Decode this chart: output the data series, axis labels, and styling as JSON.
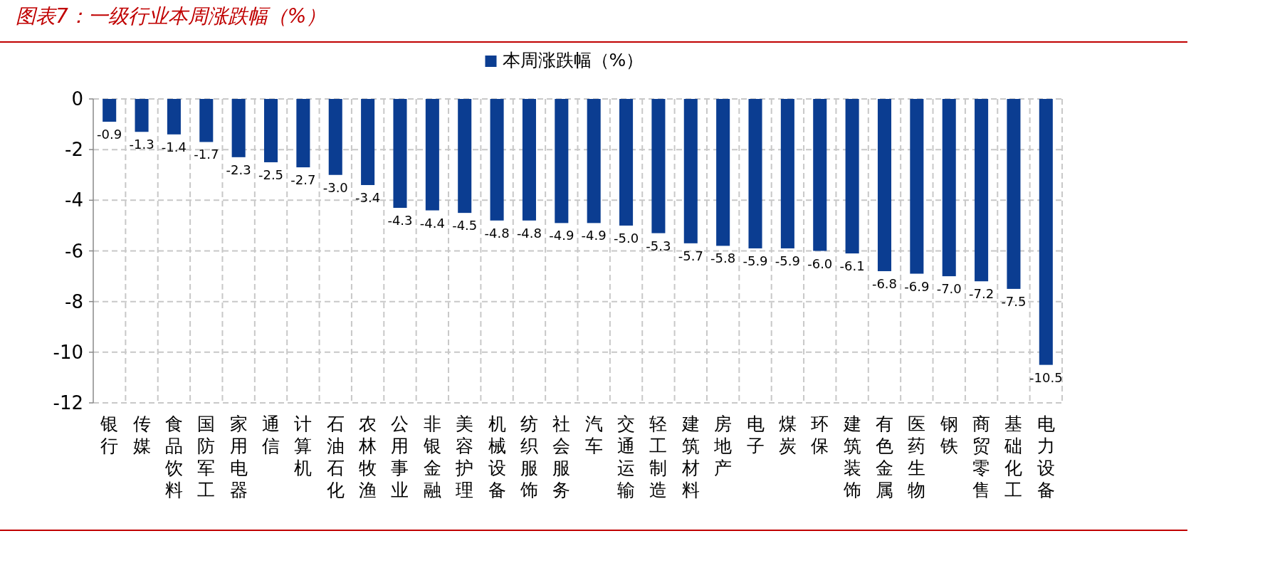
{
  "chart_data": {
    "type": "bar",
    "title": "图表7：一级行业本周涨跌幅（%）",
    "categories": [
      "银行",
      "传媒",
      "食品饮料",
      "国防军工",
      "家用电器",
      "通信",
      "计算机",
      "石油石化",
      "农林牧渔",
      "公用事业",
      "非银金融",
      "美容护理",
      "机械设备",
      "纺织服饰",
      "社会服务",
      "汽车",
      "交通运输",
      "轻工制造",
      "建筑材料",
      "房地产",
      "电子",
      "煤炭",
      "环保",
      "建筑装饰",
      "有色金属",
      "医药生物",
      "钢铁",
      "商贸零售",
      "基础化工",
      "电力设备"
    ],
    "series": [
      {
        "name": "本周涨跌幅（%）",
        "color": "#0b3d91",
        "values": [
          -0.9,
          -1.3,
          -1.4,
          -1.7,
          -2.3,
          -2.5,
          -2.7,
          -3.0,
          -3.4,
          -4.3,
          -4.4,
          -4.5,
          -4.8,
          -4.8,
          -4.9,
          -4.9,
          -5.0,
          -5.3,
          -5.7,
          -5.8,
          -5.9,
          -5.9,
          -6.0,
          -6.1,
          -6.8,
          -6.9,
          -7.0,
          -7.2,
          -7.5,
          -10.5
        ],
        "value_labels": [
          "-0.9",
          "-1.3",
          "-1.4",
          "-1.7",
          "-2.3",
          "-2.5",
          "-2.7",
          "-3.0",
          "-3.4",
          "-4.3",
          "-4.4",
          "-4.5",
          "-4.8",
          "-4.8",
          "-4.9",
          "-4.9",
          "-5.0",
          "-5.3",
          "-5.7",
          "-5.8",
          "-5.9",
          "-5.9",
          "-6.0",
          "-6.1",
          "-6.8",
          "-6.9",
          "-7.0",
          "-7.2",
          "-7.5",
          "-10.5"
        ]
      }
    ],
    "ylim": [
      -12,
      0
    ],
    "yticks": [
      0,
      -2,
      -4,
      -6,
      -8,
      -10,
      -12
    ],
    "grid": true,
    "legend": "top"
  }
}
